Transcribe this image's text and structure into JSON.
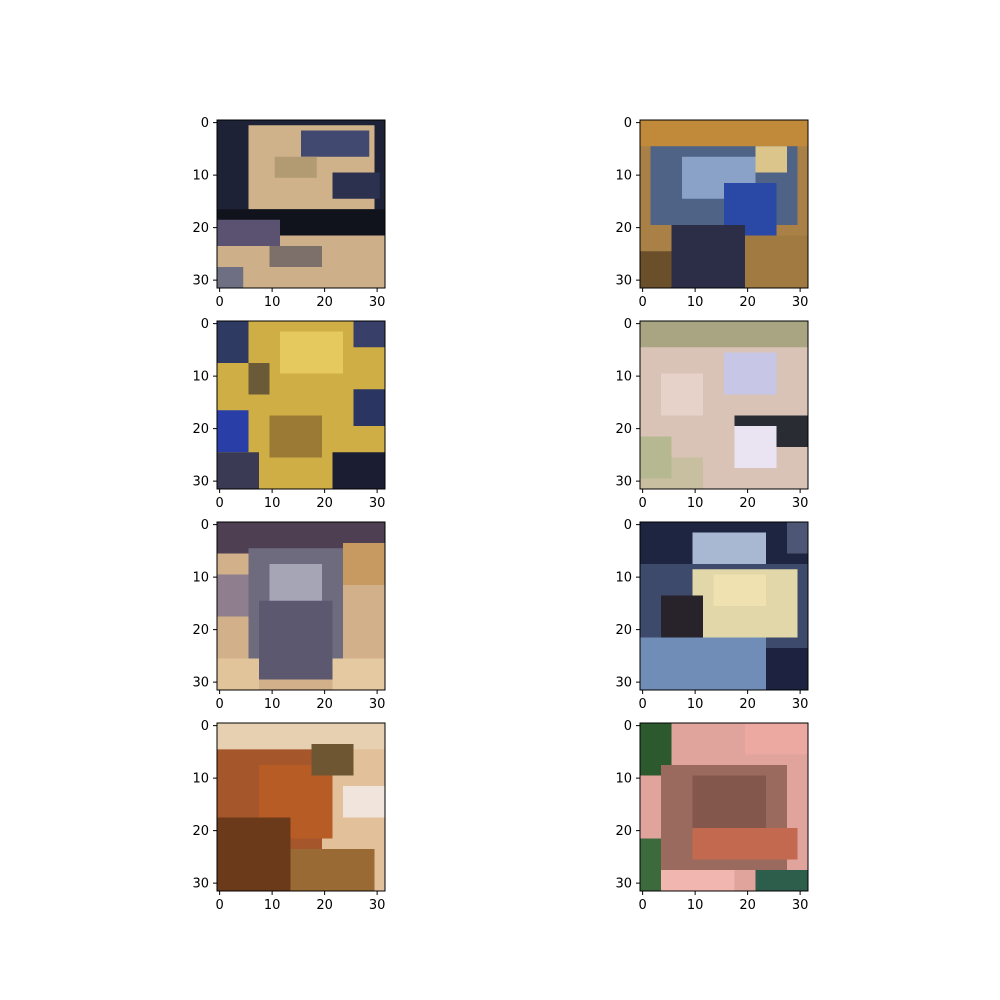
{
  "chart_data": {
    "type": "heatmap",
    "layout": "4x2 grid of image panels",
    "image_size": [
      32,
      32
    ],
    "axis": {
      "xlim": [
        0,
        32
      ],
      "ylim": [
        32,
        0
      ],
      "x_ticks": [
        0,
        10,
        20,
        30
      ],
      "y_ticks": [
        0,
        10,
        20,
        30
      ],
      "x_tick_labels": [
        "0",
        "10",
        "20",
        "30"
      ],
      "y_tick_labels": [
        "0",
        "10",
        "20",
        "30"
      ]
    },
    "grid": false,
    "panels": [
      {
        "blocks": [
          {
            "r": [
              0,
              32
            ],
            "c": [
              0,
              32
            ],
            "color": "#1e2236"
          },
          {
            "r": [
              1,
              17
            ],
            "c": [
              6,
              30
            ],
            "color": "#cfb28a"
          },
          {
            "r": [
              2,
              7
            ],
            "c": [
              16,
              29
            ],
            "color": "#414970"
          },
          {
            "r": [
              7,
              11
            ],
            "c": [
              11,
              19
            ],
            "color": "#b29a73"
          },
          {
            "r": [
              10,
              15
            ],
            "c": [
              22,
              31
            ],
            "color": "#2c3150"
          },
          {
            "r": [
              17,
              22
            ],
            "c": [
              0,
              32
            ],
            "color": "#10121c"
          },
          {
            "r": [
              22,
              32
            ],
            "c": [
              0,
              32
            ],
            "color": "#cdb08a"
          },
          {
            "r": [
              19,
              24
            ],
            "c": [
              0,
              12
            ],
            "color": "#5a5270"
          },
          {
            "r": [
              24,
              28
            ],
            "c": [
              10,
              20
            ],
            "color": "#7d6f6a"
          },
          {
            "r": [
              28,
              32
            ],
            "c": [
              0,
              5
            ],
            "color": "#6f6f84"
          }
        ]
      },
      {
        "blocks": [
          {
            "r": [
              0,
              32
            ],
            "c": [
              0,
              32
            ],
            "color": "#a98147"
          },
          {
            "r": [
              0,
              5
            ],
            "c": [
              0,
              32
            ],
            "color": "#c08a3a"
          },
          {
            "r": [
              5,
              20
            ],
            "c": [
              2,
              30
            ],
            "color": "#4f6386"
          },
          {
            "r": [
              7,
              15
            ],
            "c": [
              8,
              22
            ],
            "color": "#8aa2c8"
          },
          {
            "r": [
              12,
              22
            ],
            "c": [
              16,
              26
            ],
            "color": "#2a48a6"
          },
          {
            "r": [
              20,
              32
            ],
            "c": [
              6,
              20
            ],
            "color": "#2c2d47"
          },
          {
            "r": [
              22,
              32
            ],
            "c": [
              20,
              32
            ],
            "color": "#a07a40"
          },
          {
            "r": [
              5,
              10
            ],
            "c": [
              22,
              28
            ],
            "color": "#dcc58a"
          },
          {
            "r": [
              25,
              32
            ],
            "c": [
              0,
              6
            ],
            "color": "#6b4f2b"
          }
        ]
      },
      {
        "blocks": [
          {
            "r": [
              0,
              32
            ],
            "c": [
              0,
              32
            ],
            "color": "#cfae45"
          },
          {
            "r": [
              0,
              8
            ],
            "c": [
              0,
              6
            ],
            "color": "#2f3a63"
          },
          {
            "r": [
              0,
              5
            ],
            "c": [
              26,
              32
            ],
            "color": "#38406a"
          },
          {
            "r": [
              8,
              14
            ],
            "c": [
              6,
              10
            ],
            "color": "#6a5a38"
          },
          {
            "r": [
              17,
              25
            ],
            "c": [
              0,
              6
            ],
            "color": "#2a3ea8"
          },
          {
            "r": [
              13,
              20
            ],
            "c": [
              26,
              32
            ],
            "color": "#2a3561"
          },
          {
            "r": [
              25,
              32
            ],
            "c": [
              0,
              8
            ],
            "color": "#3a3a55"
          },
          {
            "r": [
              25,
              32
            ],
            "c": [
              22,
              32
            ],
            "color": "#1b1e33"
          },
          {
            "r": [
              18,
              26
            ],
            "c": [
              10,
              20
            ],
            "color": "#9a7a35"
          },
          {
            "r": [
              2,
              10
            ],
            "c": [
              12,
              24
            ],
            "color": "#e5c95e"
          }
        ]
      },
      {
        "blocks": [
          {
            "r": [
              0,
              32
            ],
            "c": [
              0,
              32
            ],
            "color": "#d9c3b6"
          },
          {
            "r": [
              0,
              5
            ],
            "c": [
              0,
              32
            ],
            "color": "#a9a482"
          },
          {
            "r": [
              6,
              14
            ],
            "c": [
              16,
              26
            ],
            "color": "#c8c6e6"
          },
          {
            "r": [
              18,
              24
            ],
            "c": [
              18,
              32
            ],
            "color": "#2a2c34"
          },
          {
            "r": [
              20,
              28
            ],
            "c": [
              18,
              26
            ],
            "color": "#eae3f2"
          },
          {
            "r": [
              26,
              32
            ],
            "c": [
              0,
              12
            ],
            "color": "#c8bfa0"
          },
          {
            "r": [
              22,
              30
            ],
            "c": [
              0,
              6
            ],
            "color": "#b6b892"
          },
          {
            "r": [
              10,
              18
            ],
            "c": [
              4,
              12
            ],
            "color": "#e6d2c8"
          }
        ]
      },
      {
        "blocks": [
          {
            "r": [
              0,
              32
            ],
            "c": [
              0,
              32
            ],
            "color": "#d2b08a"
          },
          {
            "r": [
              0,
              6
            ],
            "c": [
              0,
              32
            ],
            "color": "#4e3f52"
          },
          {
            "r": [
              5,
              28
            ],
            "c": [
              6,
              24
            ],
            "color": "#6e6b7e"
          },
          {
            "r": [
              8,
              18
            ],
            "c": [
              10,
              20
            ],
            "color": "#a6a5b6"
          },
          {
            "r": [
              15,
              30
            ],
            "c": [
              8,
              22
            ],
            "color": "#5b5870"
          },
          {
            "r": [
              26,
              32
            ],
            "c": [
              0,
              8
            ],
            "color": "#e2c49a"
          },
          {
            "r": [
              26,
              32
            ],
            "c": [
              22,
              32
            ],
            "color": "#e5c9a1"
          },
          {
            "r": [
              4,
              12
            ],
            "c": [
              24,
              32
            ],
            "color": "#c79a62"
          },
          {
            "r": [
              10,
              18
            ],
            "c": [
              0,
              6
            ],
            "color": "#8f7e8e"
          }
        ]
      },
      {
        "blocks": [
          {
            "r": [
              0,
              32
            ],
            "c": [
              0,
              32
            ],
            "color": "#3e4a6c"
          },
          {
            "r": [
              0,
              8
            ],
            "c": [
              0,
              32
            ],
            "color": "#1e2540"
          },
          {
            "r": [
              2,
              8
            ],
            "c": [
              10,
              24
            ],
            "color": "#a9b8d2"
          },
          {
            "r": [
              9,
              22
            ],
            "c": [
              10,
              30
            ],
            "color": "#e2d7a8"
          },
          {
            "r": [
              10,
              16
            ],
            "c": [
              14,
              24
            ],
            "color": "#efe2b0"
          },
          {
            "r": [
              14,
              24
            ],
            "c": [
              4,
              12
            ],
            "color": "#28232a"
          },
          {
            "r": [
              22,
              32
            ],
            "c": [
              0,
              24
            ],
            "color": "#6f8db6"
          },
          {
            "r": [
              24,
              32
            ],
            "c": [
              24,
              32
            ],
            "color": "#1c2240"
          },
          {
            "r": [
              0,
              6
            ],
            "c": [
              28,
              32
            ],
            "color": "#4d5675"
          }
        ]
      },
      {
        "blocks": [
          {
            "r": [
              0,
              32
            ],
            "c": [
              0,
              32
            ],
            "color": "#e1c09a"
          },
          {
            "r": [
              5,
              28
            ],
            "c": [
              0,
              20
            ],
            "color": "#a5562a"
          },
          {
            "r": [
              8,
              22
            ],
            "c": [
              8,
              22
            ],
            "color": "#b85c25"
          },
          {
            "r": [
              18,
              32
            ],
            "c": [
              0,
              14
            ],
            "color": "#6b3a1a"
          },
          {
            "r": [
              24,
              32
            ],
            "c": [
              14,
              30
            ],
            "color": "#9a6a35"
          },
          {
            "r": [
              12,
              18
            ],
            "c": [
              24,
              32
            ],
            "color": "#f0e4dc"
          },
          {
            "r": [
              0,
              5
            ],
            "c": [
              0,
              32
            ],
            "color": "#e7d0b2"
          },
          {
            "r": [
              4,
              10
            ],
            "c": [
              18,
              26
            ],
            "color": "#6d5631"
          }
        ]
      },
      {
        "blocks": [
          {
            "r": [
              0,
              32
            ],
            "c": [
              0,
              32
            ],
            "color": "#e0a49d"
          },
          {
            "r": [
              0,
              10
            ],
            "c": [
              0,
              6
            ],
            "color": "#2c5a2e"
          },
          {
            "r": [
              8,
              28
            ],
            "c": [
              4,
              28
            ],
            "color": "#9a6a5e"
          },
          {
            "r": [
              10,
              20
            ],
            "c": [
              10,
              24
            ],
            "color": "#84574c"
          },
          {
            "r": [
              20,
              26
            ],
            "c": [
              10,
              30
            ],
            "color": "#c2694f"
          },
          {
            "r": [
              28,
              32
            ],
            "c": [
              0,
              18
            ],
            "color": "#f2b6b0"
          },
          {
            "r": [
              28,
              32
            ],
            "c": [
              22,
              32
            ],
            "color": "#2d5d4b"
          },
          {
            "r": [
              22,
              32
            ],
            "c": [
              0,
              4
            ],
            "color": "#3c6a3c"
          },
          {
            "r": [
              0,
              6
            ],
            "c": [
              20,
              32
            ],
            "color": "#eba9a2"
          }
        ]
      }
    ]
  }
}
